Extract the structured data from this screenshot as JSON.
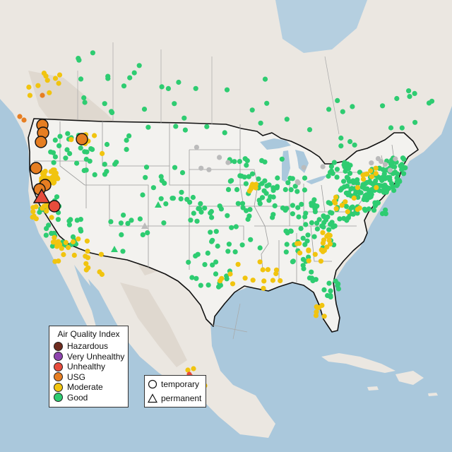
{
  "map": {
    "colors": {
      "water": "#aac8dc",
      "land": "#ebe7e1",
      "us_fill": "#f2f2f0",
      "relief": "#d9d3ca",
      "border": "#111111",
      "state_line": "#8c8c8c"
    },
    "category_colors": {
      "good": "#2ecc71",
      "moderate": "#f1c40f",
      "usg": "#e67e22",
      "unhealthy": "#e74c3c",
      "very_unhealthy": "#8e44ad",
      "hazardous": "#6e2c1f",
      "inactive": "#bbbbbb"
    }
  },
  "legend": {
    "title": "Air Quality Index",
    "items": [
      {
        "label": "Hazardous",
        "color": "#6e2c1f"
      },
      {
        "label": "Very Unhealthy",
        "color": "#8e44ad"
      },
      {
        "label": "Unhealthy",
        "color": "#e74c3c"
      },
      {
        "label": "USG",
        "color": "#e67e22"
      },
      {
        "label": "Moderate",
        "color": "#f1c40f"
      },
      {
        "label": "Good",
        "color": "#2ecc71"
      }
    ]
  },
  "type_legend": {
    "items": [
      {
        "label": "temporary",
        "icon": "circle-icon"
      },
      {
        "label": "permanent",
        "icon": "triangle-icon"
      }
    ]
  }
}
